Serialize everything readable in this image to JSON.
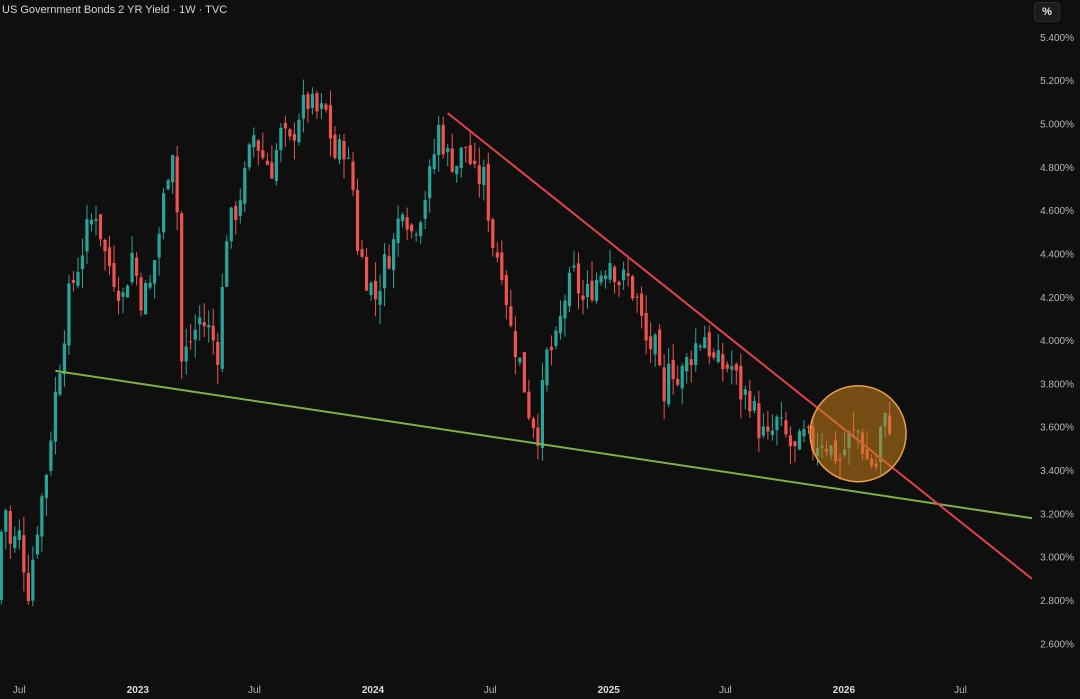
{
  "header": {
    "title": "US Government Bonds 2 YR Yield · 1W · TVC",
    "unit": "%"
  },
  "chart_data": {
    "type": "candlestick",
    "y_ticks": [
      "2.600%",
      "2.800%",
      "3.000%",
      "3.200%",
      "3.400%",
      "3.600%",
      "3.800%",
      "4.000%",
      "4.200%",
      "4.400%",
      "4.600%",
      "4.800%",
      "5.000%",
      "5.200%",
      "5.400%"
    ],
    "y_tick_values": [
      2.6,
      2.8,
      3.0,
      3.2,
      3.4,
      3.6,
      3.8,
      4.0,
      4.2,
      4.4,
      4.6,
      4.8,
      5.0,
      5.2,
      5.4
    ],
    "ylim": [
      2.47,
      5.48
    ],
    "xlim": [
      "2022-06-01",
      "2026-10-20"
    ],
    "x_ticks": [
      {
        "label": "Jul",
        "date": "2022-07-01",
        "bold": false
      },
      {
        "label": "2023",
        "date": "2023-01-01",
        "bold": true
      },
      {
        "label": "Jul",
        "date": "2023-07-01",
        "bold": false
      },
      {
        "label": "2024",
        "date": "2024-01-01",
        "bold": true
      },
      {
        "label": "Jul",
        "date": "2024-07-01",
        "bold": false
      },
      {
        "label": "2025",
        "date": "2025-01-01",
        "bold": true
      },
      {
        "label": "Jul",
        "date": "2025-07-01",
        "bold": false
      },
      {
        "label": "2026",
        "date": "2026-01-01",
        "bold": true
      },
      {
        "label": "Jul",
        "date": "2026-07-01",
        "bold": false
      }
    ],
    "grid": false,
    "colors": {
      "up": "#26a69a",
      "down": "#ef5350",
      "support": "#7cb342",
      "resistance": "#e0424e",
      "circle_fill": "#c87f1a",
      "circle_stroke": "#e8a14a"
    },
    "ohlc_path": [
      [
        "2022-06-03",
        2.8
      ],
      [
        "2022-06-14",
        3.3
      ],
      [
        "2022-06-24",
        3.05
      ],
      [
        "2022-07-08",
        3.1
      ],
      [
        "2022-07-22",
        2.85
      ],
      [
        "2022-08-05",
        3.15
      ],
      [
        "2022-08-19",
        3.4
      ],
      [
        "2022-09-02",
        3.75
      ],
      [
        "2022-09-23",
        4.2
      ],
      [
        "2022-10-07",
        4.35
      ],
      [
        "2022-10-21",
        4.5
      ],
      [
        "2022-11-04",
        4.6
      ],
      [
        "2022-11-18",
        4.4
      ],
      [
        "2022-12-02",
        4.3
      ],
      [
        "2022-12-16",
        4.2
      ],
      [
        "2022-12-30",
        4.4
      ],
      [
        "2023-01-13",
        4.2
      ],
      [
        "2023-01-27",
        4.25
      ],
      [
        "2023-02-10",
        4.5
      ],
      [
        "2023-02-24",
        4.8
      ],
      [
        "2023-03-03",
        4.9
      ],
      [
        "2023-03-10",
        4.6
      ],
      [
        "2023-03-17",
        3.9
      ],
      [
        "2023-03-31",
        4.0
      ],
      [
        "2023-04-14",
        4.1
      ],
      [
        "2023-04-28",
        4.05
      ],
      [
        "2023-05-12",
        3.95
      ],
      [
        "2023-05-26",
        4.5
      ],
      [
        "2023-06-09",
        4.6
      ],
      [
        "2023-06-23",
        4.75
      ],
      [
        "2023-07-07",
        4.95
      ],
      [
        "2023-07-21",
        4.85
      ],
      [
        "2023-08-04",
        4.8
      ],
      [
        "2023-08-18",
        4.95
      ],
      [
        "2023-09-01",
        4.9
      ],
      [
        "2023-09-15",
        5.05
      ],
      [
        "2023-09-29",
        5.1
      ],
      [
        "2023-10-13",
        5.05
      ],
      [
        "2023-10-27",
        5.05
      ],
      [
        "2023-11-10",
        4.85
      ],
      [
        "2023-11-24",
        4.9
      ],
      [
        "2023-12-08",
        4.7
      ],
      [
        "2023-12-15",
        4.45
      ],
      [
        "2023-12-29",
        4.3
      ],
      [
        "2024-01-12",
        4.2
      ],
      [
        "2024-01-26",
        4.35
      ],
      [
        "2024-02-09",
        4.45
      ],
      [
        "2024-02-23",
        4.65
      ],
      [
        "2024-03-08",
        4.5
      ],
      [
        "2024-03-22",
        4.6
      ],
      [
        "2024-04-05",
        4.75
      ],
      [
        "2024-04-19",
        4.98
      ],
      [
        "2024-05-03",
        4.85
      ],
      [
        "2024-05-17",
        4.82
      ],
      [
        "2024-05-31",
        4.9
      ],
      [
        "2024-06-14",
        4.75
      ],
      [
        "2024-06-28",
        4.75
      ],
      [
        "2024-07-12",
        4.45
      ],
      [
        "2024-07-26",
        4.35
      ],
      [
        "2024-08-09",
        4.05
      ],
      [
        "2024-08-23",
        3.9
      ],
      [
        "2024-09-06",
        3.68
      ],
      [
        "2024-09-20",
        3.58
      ],
      [
        "2024-10-04",
        3.93
      ],
      [
        "2024-10-18",
        3.98
      ],
      [
        "2024-11-01",
        4.2
      ],
      [
        "2024-11-15",
        4.3
      ],
      [
        "2024-11-29",
        4.18
      ],
      [
        "2024-12-13",
        4.25
      ],
      [
        "2024-12-27",
        4.32
      ],
      [
        "2025-01-10",
        4.38
      ],
      [
        "2025-01-24",
        4.28
      ],
      [
        "2025-02-07",
        4.28
      ],
      [
        "2025-02-21",
        4.18
      ],
      [
        "2025-03-07",
        3.99
      ],
      [
        "2025-03-21",
        3.96
      ],
      [
        "2025-04-04",
        3.68
      ],
      [
        "2025-04-11",
        3.95
      ],
      [
        "2025-04-25",
        3.8
      ],
      [
        "2025-05-09",
        3.9
      ],
      [
        "2025-05-23",
        3.98
      ],
      [
        "2025-06-06",
        4.03
      ],
      [
        "2025-06-20",
        3.9
      ],
      [
        "2025-07-04",
        3.88
      ],
      [
        "2025-07-18",
        3.88
      ],
      [
        "2025-08-01",
        3.76
      ],
      [
        "2025-08-15",
        3.74
      ],
      [
        "2025-08-29",
        3.6
      ],
      [
        "2025-09-12",
        3.53
      ],
      [
        "2025-09-26",
        3.62
      ],
      [
        "2025-10-10",
        3.55
      ],
      [
        "2025-10-24",
        3.48
      ],
      [
        "2025-11-07",
        3.55
      ],
      [
        "2025-11-21",
        3.52
      ],
      [
        "2025-12-05",
        3.55
      ],
      [
        "2025-12-19",
        3.5
      ],
      [
        "2026-01-02",
        3.45
      ],
      [
        "2026-01-16",
        3.55
      ],
      [
        "2026-01-30",
        3.58
      ],
      [
        "2026-02-13",
        3.45
      ],
      [
        "2026-02-27",
        3.42
      ],
      [
        "2026-03-06",
        3.58
      ],
      [
        "2026-03-13",
        3.62
      ]
    ],
    "support_line": {
      "from": [
        "2022-08-26",
        3.86
      ],
      "to": [
        "2026-10-20",
        3.18
      ]
    },
    "resistance_line": {
      "from": [
        "2024-04-26",
        5.05
      ],
      "to": [
        "2026-10-20",
        2.9
      ]
    },
    "highlight_circle": {
      "center": [
        "2026-01-23",
        3.57
      ],
      "radius_px": 48
    }
  }
}
